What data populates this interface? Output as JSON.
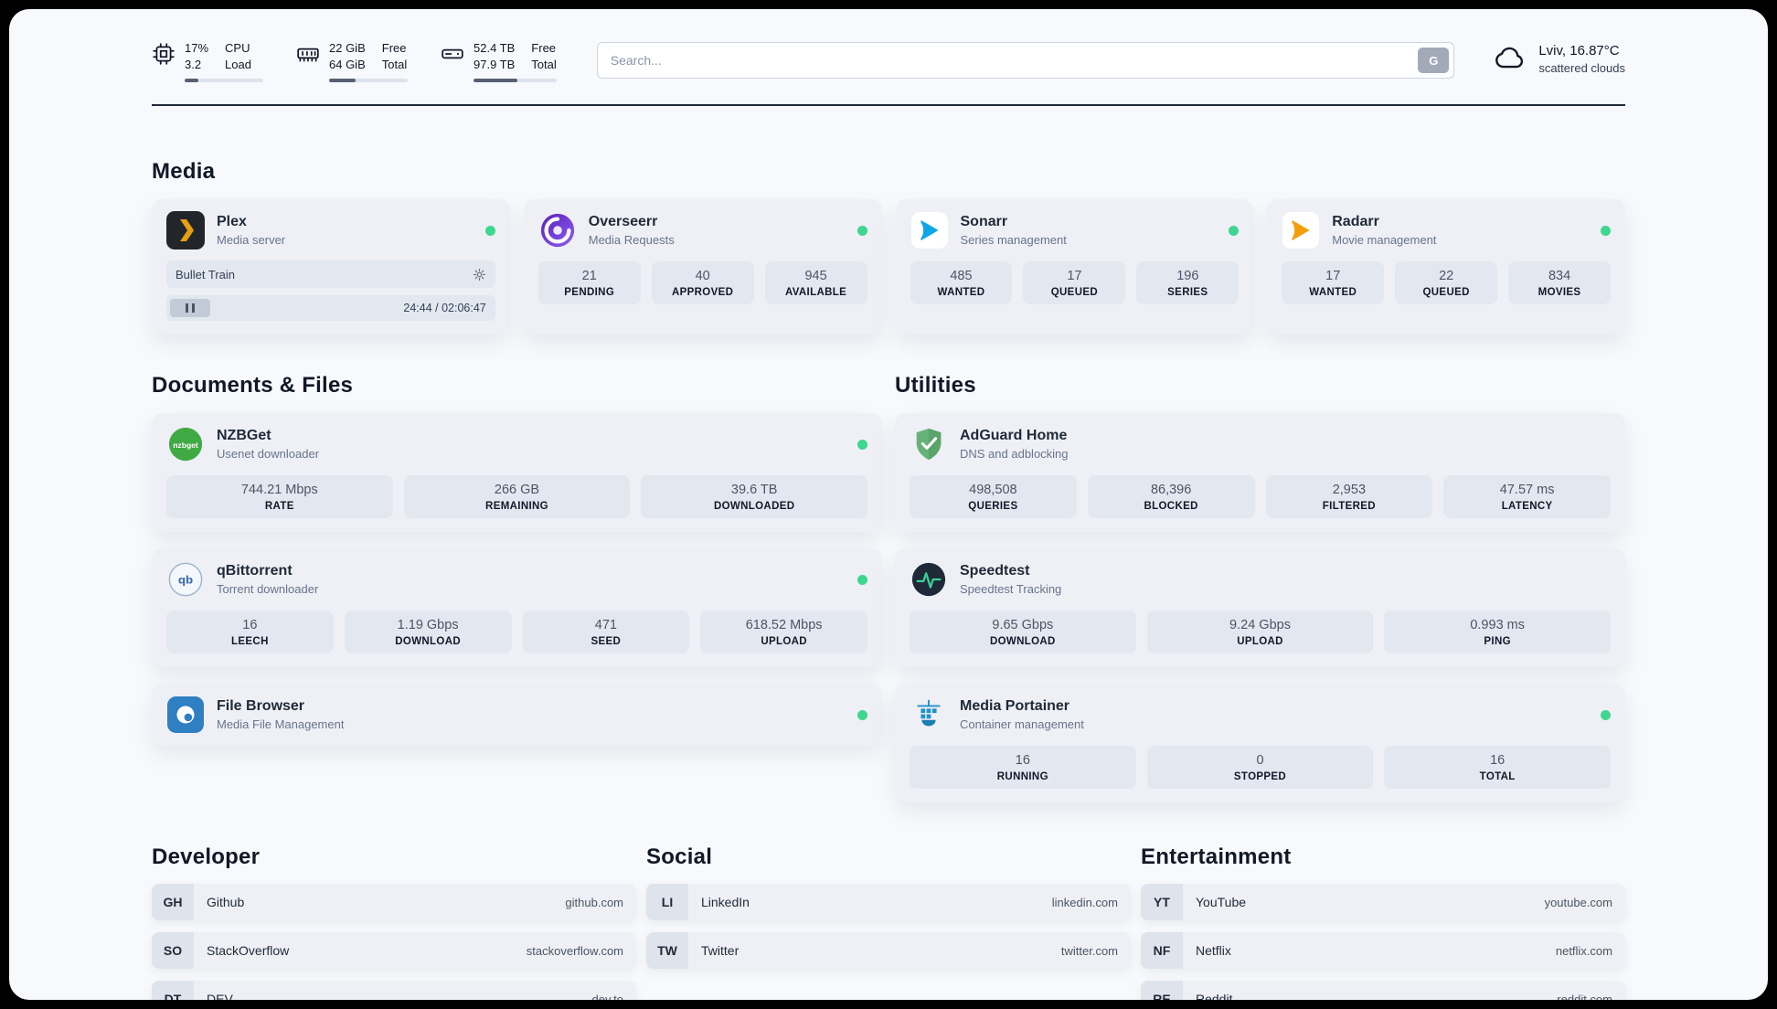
{
  "topbar": {
    "cpu": {
      "value_top": "17%",
      "value_bottom": "3.2",
      "label_top": "CPU",
      "label_bottom": "Load",
      "percent": 17
    },
    "memory": {
      "value_top": "22 GiB",
      "value_bottom": "64 GiB",
      "label_top": "Free",
      "label_bottom": "Total",
      "percent": 34
    },
    "disk": {
      "value_top": "52.4 TB",
      "value_bottom": "97.9 TB",
      "label_top": "Free",
      "label_bottom": "Total",
      "percent": 53
    },
    "search": {
      "placeholder": "Search...",
      "button_label": "G"
    },
    "weather": {
      "location": "Lviv, 16.87°C",
      "condition": "scattered clouds"
    }
  },
  "media": {
    "title": "Media",
    "plex": {
      "name": "Plex",
      "subtitle": "Media server",
      "now_playing": "Bullet Train",
      "time": "24:44 / 02:06:47"
    },
    "overseerr": {
      "name": "Overseerr",
      "subtitle": "Media Requests",
      "stats": [
        {
          "value": "21",
          "label": "PENDING"
        },
        {
          "value": "40",
          "label": "APPROVED"
        },
        {
          "value": "945",
          "label": "AVAILABLE"
        }
      ]
    },
    "sonarr": {
      "name": "Sonarr",
      "subtitle": "Series management",
      "stats": [
        {
          "value": "485",
          "label": "WANTED"
        },
        {
          "value": "17",
          "label": "QUEUED"
        },
        {
          "value": "196",
          "label": "SERIES"
        }
      ]
    },
    "radarr": {
      "name": "Radarr",
      "subtitle": "Movie management",
      "stats": [
        {
          "value": "17",
          "label": "WANTED"
        },
        {
          "value": "22",
          "label": "QUEUED"
        },
        {
          "value": "834",
          "label": "MOVIES"
        }
      ]
    }
  },
  "documents": {
    "title": "Documents & Files",
    "nzbget": {
      "name": "NZBGet",
      "subtitle": "Usenet downloader",
      "stats": [
        {
          "value": "744.21 Mbps",
          "label": "RATE"
        },
        {
          "value": "266 GB",
          "label": "REMAINING"
        },
        {
          "value": "39.6 TB",
          "label": "DOWNLOADED"
        }
      ]
    },
    "qbittorrent": {
      "name": "qBittorrent",
      "subtitle": "Torrent downloader",
      "stats": [
        {
          "value": "16",
          "label": "LEECH"
        },
        {
          "value": "1.19 Gbps",
          "label": "DOWNLOAD"
        },
        {
          "value": "471",
          "label": "SEED"
        },
        {
          "value": "618.52 Mbps",
          "label": "UPLOAD"
        }
      ]
    },
    "filebrowser": {
      "name": "File Browser",
      "subtitle": "Media File Management"
    }
  },
  "utilities": {
    "title": "Utilities",
    "adguard": {
      "name": "AdGuard Home",
      "subtitle": "DNS and adblocking",
      "stats": [
        {
          "value": "498,508",
          "label": "QUERIES"
        },
        {
          "value": "86,396",
          "label": "BLOCKED"
        },
        {
          "value": "2,953",
          "label": "FILTERED"
        },
        {
          "value": "47.57 ms",
          "label": "LATENCY"
        }
      ]
    },
    "speedtest": {
      "name": "Speedtest",
      "subtitle": "Speedtest Tracking",
      "stats": [
        {
          "value": "9.65 Gbps",
          "label": "DOWNLOAD"
        },
        {
          "value": "9.24 Gbps",
          "label": "UPLOAD"
        },
        {
          "value": "0.993 ms",
          "label": "PING"
        }
      ]
    },
    "portainer": {
      "name": "Media Portainer",
      "subtitle": "Container management",
      "stats": [
        {
          "value": "16",
          "label": "RUNNING"
        },
        {
          "value": "0",
          "label": "STOPPED"
        },
        {
          "value": "16",
          "label": "TOTAL"
        }
      ]
    }
  },
  "bookmarks": {
    "developer": {
      "title": "Developer",
      "items": [
        {
          "abbr": "GH",
          "name": "Github",
          "url": "github.com"
        },
        {
          "abbr": "SO",
          "name": "StackOverflow",
          "url": "stackoverflow.com"
        },
        {
          "abbr": "DT",
          "name": "DEV",
          "url": "dev.to"
        }
      ]
    },
    "social": {
      "title": "Social",
      "items": [
        {
          "abbr": "LI",
          "name": "LinkedIn",
          "url": "linkedin.com"
        },
        {
          "abbr": "TW",
          "name": "Twitter",
          "url": "twitter.com"
        }
      ]
    },
    "entertainment": {
      "title": "Entertainment",
      "items": [
        {
          "abbr": "YT",
          "name": "YouTube",
          "url": "youtube.com"
        },
        {
          "abbr": "NF",
          "name": "Netflix",
          "url": "netflix.com"
        },
        {
          "abbr": "RE",
          "name": "Reddit",
          "url": "reddit.com"
        }
      ]
    }
  },
  "colors": {
    "status_online": "#3fd68f",
    "accent_plex": "#e5a00d",
    "accent_sonarr": "#0ea5e9",
    "accent_radarr": "#f59e0b",
    "accent_adguard": "#67b279"
  }
}
